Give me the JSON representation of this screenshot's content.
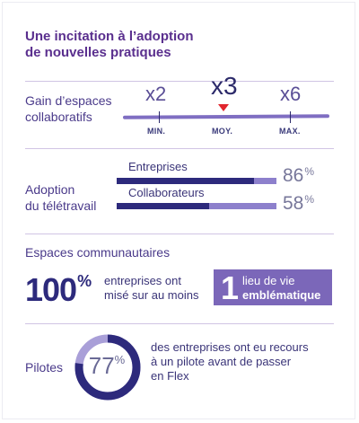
{
  "title": {
    "line1": "Une incitation à l’adoption",
    "line2": "de nouvelles pratiques"
  },
  "collab": {
    "label_line1": "Gain d’espaces",
    "label_line2": "collaboratifs",
    "values": [
      "x2",
      "x3",
      "x6"
    ],
    "axis_labels": [
      "MIN.",
      "MOY.",
      "MAX."
    ],
    "marker_color": "#e1262e"
  },
  "teletravail": {
    "label_line1": "Adoption",
    "label_line2": "du télétravail",
    "bars": [
      {
        "label": "Entreprises",
        "value": 86,
        "unit": "%"
      },
      {
        "label": "Collaborateurs",
        "value": 58,
        "unit": "%"
      }
    ]
  },
  "communautaires": {
    "heading": "Espaces communautaires",
    "stat": "100",
    "stat_unit": "%",
    "desc_line1": "entreprises ont",
    "desc_line2": "misé sur au moins",
    "badge_num": "1",
    "badge_line1": "lieu de vie",
    "badge_line2": "emblématique"
  },
  "pilotes": {
    "label": "Pilotes",
    "value": 77,
    "unit": "%",
    "desc_line1": "des entreprises ont eu recours",
    "desc_line2": "à un pilote avant de passer",
    "desc_line3": "en Flex"
  },
  "colors": {
    "dark": "#2d2a7c",
    "light": "#8d80cc",
    "title": "#5a2f8e",
    "badge": "#7b67b9"
  }
}
